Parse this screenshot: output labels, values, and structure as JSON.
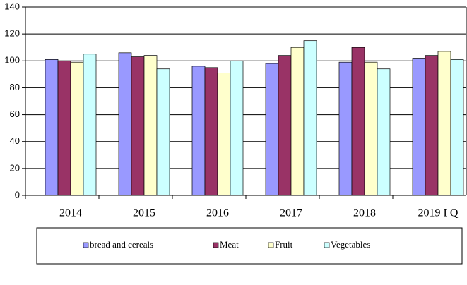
{
  "chart_data": {
    "type": "bar",
    "categories": [
      "2014",
      "2015",
      "2016",
      "2017",
      "2018",
      "2019 I Q"
    ],
    "series": [
      {
        "name": "bread and cereals",
        "color": "#9999ff",
        "values": [
          101,
          106,
          96,
          98,
          99,
          102
        ]
      },
      {
        "name": "Meat",
        "color": "#993366",
        "values": [
          100,
          103,
          95,
          104,
          110,
          104
        ]
      },
      {
        "name": "Fruit",
        "color": "#ffffcc",
        "values": [
          99,
          104,
          91,
          110,
          99,
          107
        ]
      },
      {
        "name": "Vegetables",
        "color": "#ccffff",
        "values": [
          105,
          94,
          100,
          115,
          94,
          101
        ]
      }
    ],
    "ylim": [
      0,
      140
    ],
    "yticks": [
      0,
      20,
      40,
      60,
      80,
      100,
      120,
      140
    ],
    "grid": true,
    "legend": "bottom"
  }
}
